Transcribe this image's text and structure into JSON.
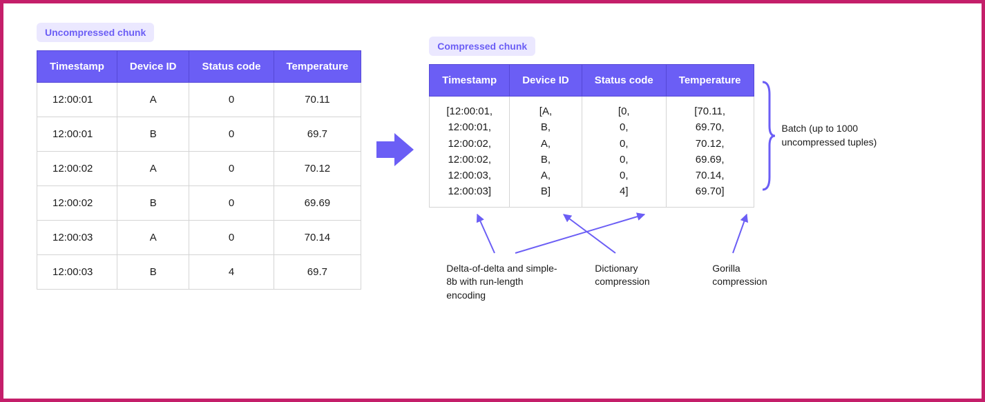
{
  "colors": {
    "purple": "#6b5ef5",
    "purple_light": "#ebe8ff",
    "magenta": "#c41e6a",
    "border_gray": "#d4d4d4",
    "text_black": "#1a1a1a"
  },
  "left": {
    "badge": "Uncompressed chunk",
    "columns": [
      "Timestamp",
      "Device ID",
      "Status code",
      "Temperature"
    ],
    "rows": [
      [
        "12:00:01",
        "A",
        "0",
        "70.11"
      ],
      [
        "12:00:01",
        "B",
        "0",
        "69.7"
      ],
      [
        "12:00:02",
        "A",
        "0",
        "70.12"
      ],
      [
        "12:00:02",
        "B",
        "0",
        "69.69"
      ],
      [
        "12:00:03",
        "A",
        "0",
        "70.14"
      ],
      [
        "12:00:03",
        "B",
        "4",
        "69.7"
      ]
    ]
  },
  "right": {
    "badge": "Compressed chunk",
    "columns": [
      "Timestamp",
      "Device ID",
      "Status code",
      "Temperature"
    ],
    "cells": [
      "[12:00:01,\n12:00:01,\n12:00:02,\n12:00:02,\n12:00:03,\n12:00:03]",
      "[A,\nB,\nA,\nB,\nA,\nB]",
      "[0,\n0,\n0,\n0,\n0,\n4]",
      "[70.11,\n69.70,\n70.12,\n69.69,\n70.14,\n69.70]"
    ]
  },
  "brace_label": "Batch (up to 1000 uncompressed tuples)",
  "captions": {
    "c1": "Delta-of-delta and simple-8b with run-length encoding",
    "c2": "Dictionary compression",
    "c3": "Gorilla compression"
  }
}
